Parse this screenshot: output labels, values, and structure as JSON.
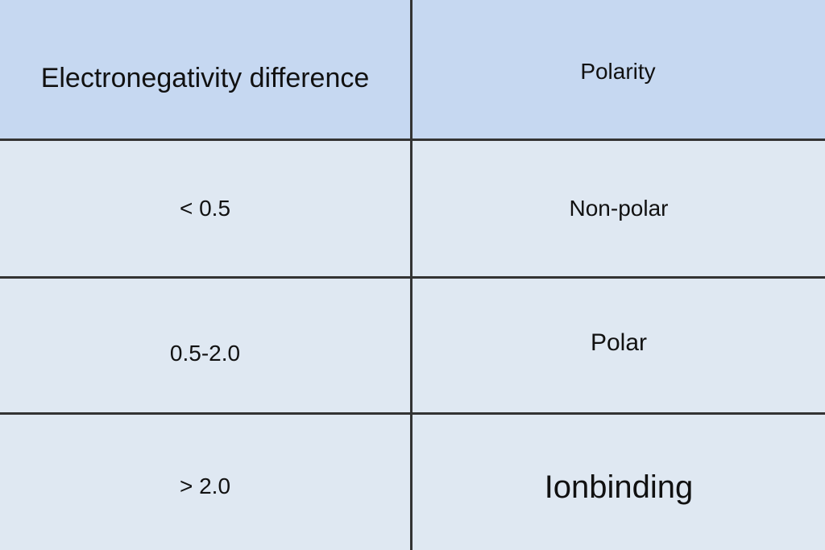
{
  "table": {
    "header": [
      "Electronegativity difference",
      "Polarity"
    ],
    "rows": [
      [
        "< 0.5",
        "Non-polar"
      ],
      [
        "0.5-2.0",
        "Polar"
      ],
      [
        "> 2.0",
        "Ionbinding"
      ]
    ]
  }
}
